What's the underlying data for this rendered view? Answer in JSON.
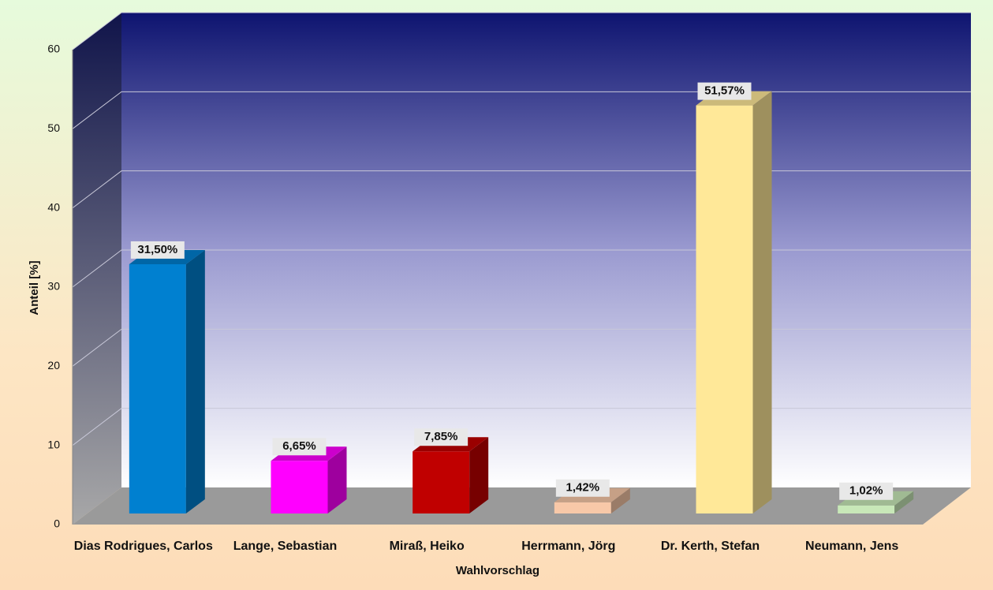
{
  "chart_data": {
    "type": "bar3d",
    "categories": [
      "Dias Rodrigues, Carlos",
      "Lange, Sebastian",
      "Miraß, Heiko",
      "Herrmann, Jörg",
      "Dr. Kerth, Stefan",
      "Neumann, Jens"
    ],
    "values": [
      31.5,
      6.65,
      7.85,
      1.42,
      51.57,
      1.02
    ],
    "value_labels": [
      "31,50%",
      "6,65%",
      "7,85%",
      "1,42%",
      "51,57%",
      "1,02%"
    ],
    "colors": [
      "#0080d0",
      "#ff00ff",
      "#c00000",
      "#f8c8a8",
      "#ffe898",
      "#c8e8b8"
    ],
    "x_label": "Wahlvorschlag",
    "y_label": "Anteil [%]",
    "ylim": [
      0,
      60
    ],
    "yticks": [
      0,
      10,
      20,
      30,
      40,
      50,
      60
    ],
    "grid": true
  }
}
